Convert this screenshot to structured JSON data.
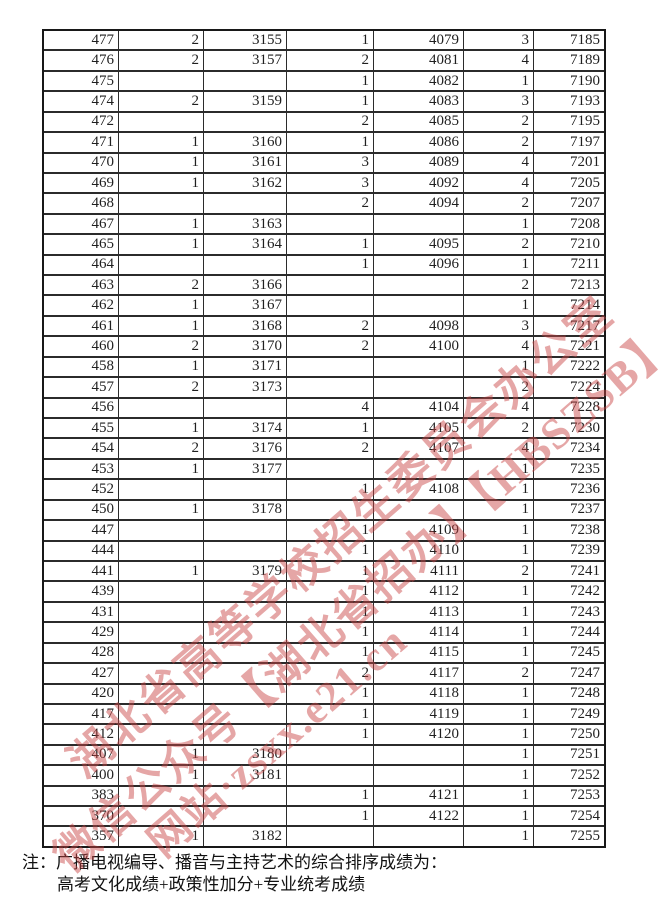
{
  "table": {
    "rows": [
      [
        "477",
        "2",
        "3155",
        "1",
        "4079",
        "3",
        "7185"
      ],
      [
        "476",
        "2",
        "3157",
        "2",
        "4081",
        "4",
        "7189"
      ],
      [
        "475",
        "",
        "",
        "1",
        "4082",
        "1",
        "7190"
      ],
      [
        "474",
        "2",
        "3159",
        "1",
        "4083",
        "3",
        "7193"
      ],
      [
        "472",
        "",
        "",
        "2",
        "4085",
        "2",
        "7195"
      ],
      [
        "471",
        "1",
        "3160",
        "1",
        "4086",
        "2",
        "7197"
      ],
      [
        "470",
        "1",
        "3161",
        "3",
        "4089",
        "4",
        "7201"
      ],
      [
        "469",
        "1",
        "3162",
        "3",
        "4092",
        "4",
        "7205"
      ],
      [
        "468",
        "",
        "",
        "2",
        "4094",
        "2",
        "7207"
      ],
      [
        "467",
        "1",
        "3163",
        "",
        "",
        "1",
        "7208"
      ],
      [
        "465",
        "1",
        "3164",
        "1",
        "4095",
        "2",
        "7210"
      ],
      [
        "464",
        "",
        "",
        "1",
        "4096",
        "1",
        "7211"
      ],
      [
        "463",
        "2",
        "3166",
        "",
        "",
        "2",
        "7213"
      ],
      [
        "462",
        "1",
        "3167",
        "",
        "",
        "1",
        "7214"
      ],
      [
        "461",
        "1",
        "3168",
        "2",
        "4098",
        "3",
        "7217"
      ],
      [
        "460",
        "2",
        "3170",
        "2",
        "4100",
        "4",
        "7221"
      ],
      [
        "458",
        "1",
        "3171",
        "",
        "",
        "1",
        "7222"
      ],
      [
        "457",
        "2",
        "3173",
        "",
        "",
        "2",
        "7224"
      ],
      [
        "456",
        "",
        "",
        "4",
        "4104",
        "4",
        "7228"
      ],
      [
        "455",
        "1",
        "3174",
        "1",
        "4105",
        "2",
        "7230"
      ],
      [
        "454",
        "2",
        "3176",
        "2",
        "4107",
        "4",
        "7234"
      ],
      [
        "453",
        "1",
        "3177",
        "",
        "",
        "1",
        "7235"
      ],
      [
        "452",
        "",
        "",
        "1",
        "4108",
        "1",
        "7236"
      ],
      [
        "450",
        "1",
        "3178",
        "",
        "",
        "1",
        "7237"
      ],
      [
        "447",
        "",
        "",
        "1",
        "4109",
        "1",
        "7238"
      ],
      [
        "444",
        "",
        "",
        "1",
        "4110",
        "1",
        "7239"
      ],
      [
        "441",
        "1",
        "3179",
        "1",
        "4111",
        "2",
        "7241"
      ],
      [
        "439",
        "",
        "",
        "1",
        "4112",
        "1",
        "7242"
      ],
      [
        "431",
        "",
        "",
        "1",
        "4113",
        "1",
        "7243"
      ],
      [
        "429",
        "",
        "",
        "1",
        "4114",
        "1",
        "7244"
      ],
      [
        "428",
        "",
        "",
        "1",
        "4115",
        "1",
        "7245"
      ],
      [
        "427",
        "",
        "",
        "2",
        "4117",
        "2",
        "7247"
      ],
      [
        "420",
        "",
        "",
        "1",
        "4118",
        "1",
        "7248"
      ],
      [
        "417",
        "",
        "",
        "1",
        "4119",
        "1",
        "7249"
      ],
      [
        "412",
        "",
        "",
        "1",
        "4120",
        "1",
        "7250"
      ],
      [
        "407",
        "1",
        "3180",
        "",
        "",
        "1",
        "7251"
      ],
      [
        "400",
        "1",
        "3181",
        "",
        "",
        "1",
        "7252"
      ],
      [
        "383",
        "",
        "",
        "1",
        "4121",
        "1",
        "7253"
      ],
      [
        "370",
        "",
        "",
        "1",
        "4122",
        "1",
        "7254"
      ],
      [
        "357",
        "1",
        "3182",
        "",
        "",
        "1",
        "7255"
      ]
    ]
  },
  "footnote": {
    "line1": "注：广播电视编导、播音与主持艺术的综合排序成绩为：",
    "line2": "高考文化成绩+政策性加分+专业统考成绩"
  },
  "watermark": {
    "color": "#c94646",
    "line1": "湖北省高等学校招生委员会办公室",
    "line2": "微信公众号【湖北省招办】【HBSZSB】",
    "line3": "网站·zsxx.e21.cn"
  }
}
